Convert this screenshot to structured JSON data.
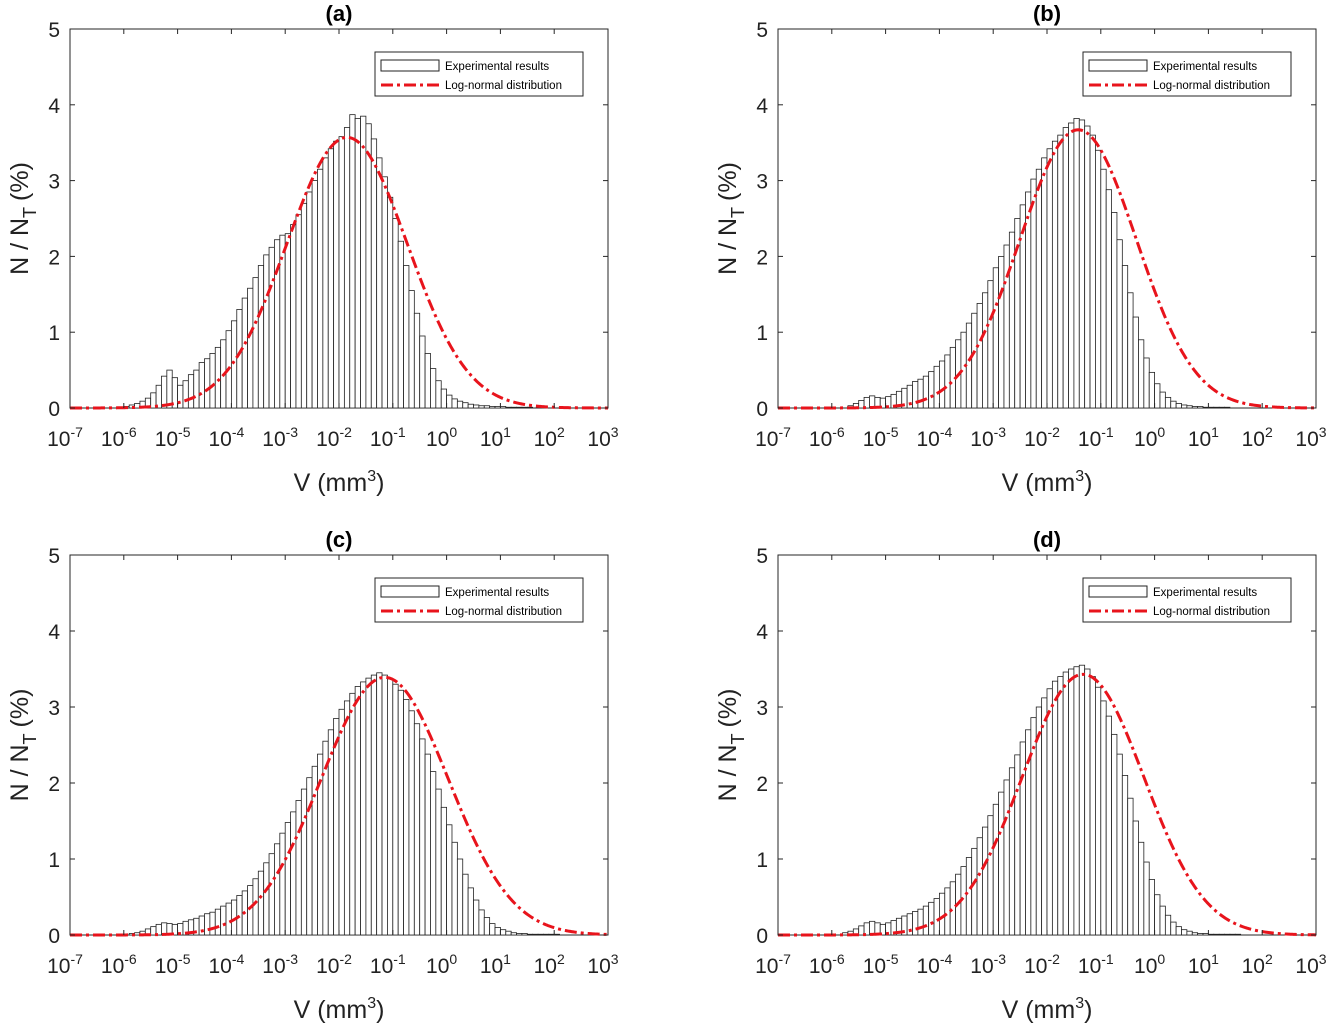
{
  "colors": {
    "bar_fill": "#ffffff",
    "bar_edge": "#222222",
    "fit_line": "#e8141c",
    "axis": "#262626"
  },
  "chart_data": [
    {
      "type": "bar",
      "title": "(a)",
      "xlabel_base": "V (mm",
      "xlabel_sup": "3",
      "xlabel_close": ")",
      "ylabel_main": "N / N",
      "ylabel_sub": "T",
      "ylabel_unit": "(%)",
      "x_scale": "log",
      "xlim": [
        1e-07,
        1000
      ],
      "ylim": [
        0,
        5
      ],
      "x_ticks": [
        "10",
        "10",
        "10",
        "10",
        "10",
        "10",
        "10",
        "10",
        "10",
        "10",
        "10"
      ],
      "x_tick_exponents": [
        "-7",
        "-6",
        "-5",
        "-4",
        "-3",
        "-2",
        "-1",
        "0",
        "1",
        "2",
        "3"
      ],
      "y_ticks": [
        "0",
        "1",
        "2",
        "3",
        "4",
        "5"
      ],
      "legend": [
        "Experimental results",
        "Log-normal distribution"
      ],
      "legend_position": "top-right",
      "grid": false,
      "series": [
        {
          "name": "Experimental results",
          "kind": "histogram",
          "description": "percentage of pores per log-volume bin",
          "x_log10_centers": [
            -5.95,
            -5.85,
            -5.75,
            -5.65,
            -5.55,
            -5.45,
            -5.35,
            -5.25,
            -5.15,
            -5.05,
            -4.95,
            -4.85,
            -4.75,
            -4.65,
            -4.55,
            -4.45,
            -4.35,
            -4.25,
            -4.15,
            -4.05,
            -3.95,
            -3.85,
            -3.75,
            -3.65,
            -3.55,
            -3.45,
            -3.35,
            -3.25,
            -3.15,
            -3.05,
            -2.95,
            -2.85,
            -2.75,
            -2.65,
            -2.55,
            -2.45,
            -2.35,
            -2.25,
            -2.15,
            -2.05,
            -1.95,
            -1.85,
            -1.75,
            -1.65,
            -1.55,
            -1.45,
            -1.35,
            -1.25,
            -1.15,
            -1.05,
            -0.95,
            -0.85,
            -0.75,
            -0.65,
            -0.55,
            -0.45,
            -0.35,
            -0.25,
            -0.15,
            -0.05,
            0.05,
            0.15,
            0.25,
            0.35,
            0.45,
            0.55,
            0.65,
            0.75,
            0.85,
            0.95,
            1.05,
            1.15,
            1.25,
            1.35,
            1.45,
            1.55
          ],
          "values": [
            0.02,
            0.04,
            0.06,
            0.09,
            0.13,
            0.2,
            0.3,
            0.42,
            0.5,
            0.4,
            0.3,
            0.36,
            0.44,
            0.5,
            0.6,
            0.65,
            0.72,
            0.8,
            0.9,
            1.02,
            1.15,
            1.3,
            1.45,
            1.58,
            1.72,
            1.88,
            2.02,
            2.12,
            2.22,
            2.28,
            2.3,
            2.42,
            2.55,
            2.7,
            2.85,
            3.0,
            3.15,
            3.3,
            3.42,
            3.52,
            3.58,
            3.7,
            3.87,
            3.82,
            3.85,
            3.75,
            3.55,
            3.3,
            3.05,
            2.78,
            2.5,
            2.2,
            1.88,
            1.55,
            1.25,
            0.95,
            0.72,
            0.52,
            0.36,
            0.25,
            0.17,
            0.12,
            0.09,
            0.07,
            0.05,
            0.04,
            0.03,
            0.03,
            0.02,
            0.02,
            0.02,
            0.01,
            0.01,
            0.01,
            0.01,
            0.01
          ]
        },
        {
          "name": "Log-normal distribution",
          "kind": "line",
          "peak": 3.57,
          "mu_log10": -1.85,
          "sigma_log10": 1.12
        }
      ]
    },
    {
      "type": "bar",
      "title": "(b)",
      "xlabel_base": "V (mm",
      "xlabel_sup": "3",
      "xlabel_close": ")",
      "ylabel_main": "N / N",
      "ylabel_sub": "T",
      "ylabel_unit": "(%)",
      "x_scale": "log",
      "xlim": [
        1e-07,
        1000
      ],
      "ylim": [
        0,
        5
      ],
      "x_ticks": [
        "10",
        "10",
        "10",
        "10",
        "10",
        "10",
        "10",
        "10",
        "10",
        "10",
        "10"
      ],
      "x_tick_exponents": [
        "-7",
        "-6",
        "-5",
        "-4",
        "-3",
        "-2",
        "-1",
        "0",
        "1",
        "2",
        "3"
      ],
      "y_ticks": [
        "0",
        "1",
        "2",
        "3",
        "4",
        "5"
      ],
      "legend": [
        "Experimental results",
        "Log-normal distribution"
      ],
      "legend_position": "top-right",
      "grid": false,
      "series": [
        {
          "name": "Experimental results",
          "kind": "histogram",
          "x_log10_centers": [
            -5.65,
            -5.55,
            -5.45,
            -5.35,
            -5.25,
            -5.15,
            -5.05,
            -4.95,
            -4.85,
            -4.75,
            -4.65,
            -4.55,
            -4.45,
            -4.35,
            -4.25,
            -4.15,
            -4.05,
            -3.95,
            -3.85,
            -3.75,
            -3.65,
            -3.55,
            -3.45,
            -3.35,
            -3.25,
            -3.15,
            -3.05,
            -2.95,
            -2.85,
            -2.75,
            -2.65,
            -2.55,
            -2.45,
            -2.35,
            -2.25,
            -2.15,
            -2.05,
            -1.95,
            -1.85,
            -1.75,
            -1.65,
            -1.55,
            -1.45,
            -1.35,
            -1.25,
            -1.15,
            -1.05,
            -0.95,
            -0.85,
            -0.75,
            -0.65,
            -0.55,
            -0.45,
            -0.35,
            -0.25,
            -0.15,
            -0.05,
            0.05,
            0.15,
            0.25,
            0.35,
            0.45,
            0.55,
            0.65,
            0.75,
            0.85,
            0.95,
            1.05,
            1.15,
            1.25,
            1.35
          ],
          "values": [
            0.03,
            0.06,
            0.1,
            0.14,
            0.16,
            0.14,
            0.13,
            0.15,
            0.18,
            0.22,
            0.26,
            0.3,
            0.35,
            0.38,
            0.42,
            0.48,
            0.55,
            0.62,
            0.7,
            0.8,
            0.9,
            1.0,
            1.12,
            1.25,
            1.38,
            1.52,
            1.68,
            1.85,
            2.0,
            2.15,
            2.32,
            2.5,
            2.68,
            2.85,
            3.02,
            3.15,
            3.3,
            3.42,
            3.52,
            3.6,
            3.7,
            3.76,
            3.82,
            3.8,
            3.72,
            3.6,
            3.4,
            3.15,
            2.88,
            2.58,
            2.22,
            1.88,
            1.52,
            1.2,
            0.9,
            0.66,
            0.47,
            0.32,
            0.21,
            0.14,
            0.09,
            0.06,
            0.04,
            0.03,
            0.02,
            0.02,
            0.01,
            0.01,
            0.01,
            0.01,
            0.01
          ]
        },
        {
          "name": "Log-normal distribution",
          "kind": "line",
          "peak": 3.67,
          "mu_log10": -1.42,
          "sigma_log10": 1.08
        }
      ]
    },
    {
      "type": "bar",
      "title": "(c)",
      "xlabel_base": "V (mm",
      "xlabel_sup": "3",
      "xlabel_close": ")",
      "ylabel_main": "N / N",
      "ylabel_sub": "T",
      "ylabel_unit": "(%)",
      "x_scale": "log",
      "xlim": [
        1e-07,
        1000
      ],
      "ylim": [
        0,
        5
      ],
      "x_ticks": [
        "10",
        "10",
        "10",
        "10",
        "10",
        "10",
        "10",
        "10",
        "10",
        "10",
        "10"
      ],
      "x_tick_exponents": [
        "-7",
        "-6",
        "-5",
        "-4",
        "-3",
        "-2",
        "-1",
        "0",
        "1",
        "2",
        "3"
      ],
      "y_ticks": [
        "0",
        "1",
        "2",
        "3",
        "4",
        "5"
      ],
      "legend": [
        "Experimental results",
        "Log-normal distribution"
      ],
      "legend_position": "top-right",
      "grid": false,
      "series": [
        {
          "name": "Experimental results",
          "kind": "histogram",
          "x_log10_centers": [
            -5.85,
            -5.75,
            -5.65,
            -5.55,
            -5.45,
            -5.35,
            -5.25,
            -5.15,
            -5.05,
            -4.95,
            -4.85,
            -4.75,
            -4.65,
            -4.55,
            -4.45,
            -4.35,
            -4.25,
            -4.15,
            -4.05,
            -3.95,
            -3.85,
            -3.75,
            -3.65,
            -3.55,
            -3.45,
            -3.35,
            -3.25,
            -3.15,
            -3.05,
            -2.95,
            -2.85,
            -2.75,
            -2.65,
            -2.55,
            -2.45,
            -2.35,
            -2.25,
            -2.15,
            -2.05,
            -1.95,
            -1.85,
            -1.75,
            -1.65,
            -1.55,
            -1.45,
            -1.35,
            -1.25,
            -1.15,
            -1.05,
            -0.95,
            -0.85,
            -0.75,
            -0.65,
            -0.55,
            -0.45,
            -0.35,
            -0.25,
            -0.15,
            -0.05,
            0.05,
            0.15,
            0.25,
            0.35,
            0.45,
            0.55,
            0.65,
            0.75,
            0.85,
            0.95,
            1.05,
            1.15,
            1.25,
            1.35,
            1.45,
            1.55,
            1.65,
            1.75,
            1.85,
            1.95,
            2.05
          ],
          "values": [
            0.02,
            0.03,
            0.05,
            0.08,
            0.11,
            0.14,
            0.16,
            0.15,
            0.14,
            0.15,
            0.18,
            0.2,
            0.22,
            0.25,
            0.28,
            0.3,
            0.34,
            0.38,
            0.42,
            0.46,
            0.52,
            0.58,
            0.65,
            0.74,
            0.84,
            0.95,
            1.07,
            1.2,
            1.34,
            1.48,
            1.62,
            1.77,
            1.92,
            2.07,
            2.22,
            2.38,
            2.55,
            2.7,
            2.85,
            2.97,
            3.08,
            3.18,
            3.27,
            3.33,
            3.38,
            3.42,
            3.45,
            3.42,
            3.37,
            3.3,
            3.22,
            3.1,
            2.95,
            2.78,
            2.58,
            2.38,
            2.15,
            1.92,
            1.68,
            1.45,
            1.22,
            1.0,
            0.8,
            0.62,
            0.46,
            0.33,
            0.23,
            0.15,
            0.1,
            0.07,
            0.05,
            0.03,
            0.02,
            0.02,
            0.01,
            0.01,
            0.01,
            0.01,
            0.01,
            0.01
          ]
        },
        {
          "name": "Log-normal distribution",
          "kind": "line",
          "peak": 3.39,
          "mu_log10": -1.15,
          "sigma_log10": 1.18
        }
      ]
    },
    {
      "type": "bar",
      "title": "(d)",
      "xlabel_base": "V (mm",
      "xlabel_sup": "3",
      "xlabel_close": ")",
      "ylabel_main": "N / N",
      "ylabel_sub": "T",
      "ylabel_unit": "(%)",
      "x_scale": "log",
      "xlim": [
        1e-07,
        1000
      ],
      "ylim": [
        0,
        5
      ],
      "x_ticks": [
        "10",
        "10",
        "10",
        "10",
        "10",
        "10",
        "10",
        "10",
        "10",
        "10",
        "10"
      ],
      "x_tick_exponents": [
        "-7",
        "-6",
        "-5",
        "-4",
        "-3",
        "-2",
        "-1",
        "0",
        "1",
        "2",
        "3"
      ],
      "y_ticks": [
        "0",
        "1",
        "2",
        "3",
        "4",
        "5"
      ],
      "legend": [
        "Experimental results",
        "Log-normal distribution"
      ],
      "legend_position": "top-right",
      "grid": false,
      "series": [
        {
          "name": "Experimental results",
          "kind": "histogram",
          "x_log10_centers": [
            -5.75,
            -5.65,
            -5.55,
            -5.45,
            -5.35,
            -5.25,
            -5.15,
            -5.05,
            -4.95,
            -4.85,
            -4.75,
            -4.65,
            -4.55,
            -4.45,
            -4.35,
            -4.25,
            -4.15,
            -4.05,
            -3.95,
            -3.85,
            -3.75,
            -3.65,
            -3.55,
            -3.45,
            -3.35,
            -3.25,
            -3.15,
            -3.05,
            -2.95,
            -2.85,
            -2.75,
            -2.65,
            -2.55,
            -2.45,
            -2.35,
            -2.25,
            -2.15,
            -2.05,
            -1.95,
            -1.85,
            -1.75,
            -1.65,
            -1.55,
            -1.45,
            -1.35,
            -1.25,
            -1.15,
            -1.05,
            -0.95,
            -0.85,
            -0.75,
            -0.65,
            -0.55,
            -0.45,
            -0.35,
            -0.25,
            -0.15,
            -0.05,
            0.05,
            0.15,
            0.25,
            0.35,
            0.45,
            0.55,
            0.65,
            0.75,
            0.85,
            0.95,
            1.05,
            1.15,
            1.25,
            1.35,
            1.45,
            1.55
          ],
          "values": [
            0.03,
            0.05,
            0.08,
            0.12,
            0.16,
            0.18,
            0.16,
            0.14,
            0.16,
            0.19,
            0.22,
            0.25,
            0.28,
            0.31,
            0.34,
            0.38,
            0.43,
            0.48,
            0.55,
            0.62,
            0.7,
            0.8,
            0.9,
            1.02,
            1.14,
            1.28,
            1.42,
            1.57,
            1.72,
            1.88,
            2.04,
            2.2,
            2.37,
            2.54,
            2.7,
            2.86,
            3.0,
            3.12,
            3.24,
            3.34,
            3.4,
            3.46,
            3.5,
            3.53,
            3.55,
            3.5,
            3.4,
            3.26,
            3.08,
            2.88,
            2.64,
            2.38,
            2.1,
            1.8,
            1.5,
            1.22,
            0.96,
            0.73,
            0.53,
            0.38,
            0.26,
            0.17,
            0.11,
            0.07,
            0.05,
            0.03,
            0.02,
            0.02,
            0.01,
            0.01,
            0.01,
            0.01,
            0.01,
            0.01
          ]
        },
        {
          "name": "Log-normal distribution",
          "kind": "line",
          "peak": 3.43,
          "mu_log10": -1.33,
          "sigma_log10": 1.13
        }
      ]
    }
  ]
}
